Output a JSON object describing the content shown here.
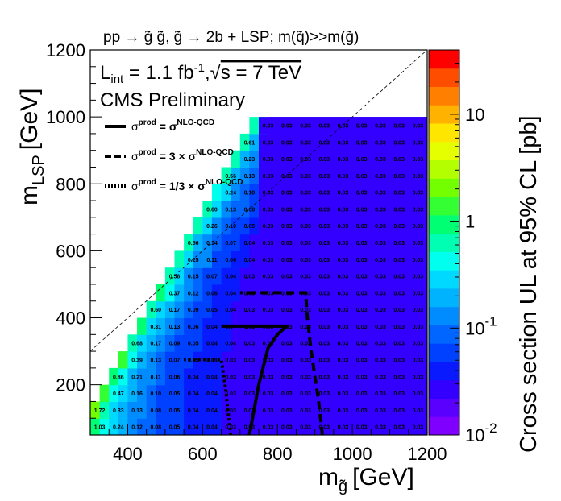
{
  "chart_data": {
    "type": "heatmap",
    "title": "pp → g̃ g̃, g̃ → 2b + LSP; m(q̃)>>m(g̃)",
    "xlabel": "m",
    "xlabel_sub": "g̃",
    "xlabel_unit": "[GeV]",
    "ylabel": "m",
    "ylabel_sub": "LSP",
    "ylabel_unit": "[GeV]",
    "zlabel": "Cross section UL at 95% CL [pb]",
    "xlim": [
      300,
      1200
    ],
    "ylim": [
      50,
      1200
    ],
    "zlim": [
      0.01,
      40
    ],
    "zscale": "log",
    "x_ticks": [
      "400",
      "600",
      "800",
      "1000",
      "1200"
    ],
    "y_ticks": [
      "200",
      "400",
      "600",
      "800",
      "1000",
      "1200"
    ],
    "z_ticks": [
      {
        "label": "10",
        "sup": "-2",
        "value": 0.01
      },
      {
        "label": "10",
        "sup": "-1",
        "value": 0.1
      },
      {
        "label": "1",
        "sup": "",
        "value": 1
      },
      {
        "label": "10",
        "sup": "",
        "value": 10
      }
    ],
    "lumi_text": {
      "L": "L",
      "sub": "int",
      "eq": " = 1.1 fb",
      "sup": "-1",
      "comma": ",",
      "sqrt": "√",
      "s": "s = 7 TeV"
    },
    "prelim": "CMS Preliminary",
    "legend": [
      {
        "style": "solid",
        "prefix": "σ",
        "psup": "prod",
        "mid": " = σ",
        "sup": "NLO-QCD"
      },
      {
        "style": "dashed",
        "prefix": "σ",
        "psup": "prod",
        "mid": " = 3 × σ",
        "sup": "NLO-QCD"
      },
      {
        "style": "dotted",
        "prefix": "σ",
        "psup": "prod",
        "mid": " = 1/3 × σ",
        "sup": "NLO-QCD"
      }
    ],
    "grid": false,
    "x_bins_start": 300,
    "x_bin_width": 25,
    "y_bins_start": 50,
    "y_bin_width": 25,
    "rows": [
      {
        "y": 50,
        "values": [
          "1.03",
          "0.48",
          "0.24",
          "0.16",
          "0.12",
          "0.10",
          "0.08",
          "0.06",
          "0.05",
          "0.05",
          "0.04",
          "0.04",
          "0.04",
          "0.04",
          "0.03",
          "0.03",
          "0.03",
          "0.03",
          "0.03",
          "0.03",
          "0.03",
          "0.03",
          "0.03",
          "0.03",
          "0.03",
          "0.03",
          "0.03",
          "0.03",
          "0.03",
          "0.03",
          "0.03",
          "0.03",
          "0.03",
          "0.03",
          "0.03",
          "0.03"
        ]
      },
      {
        "y": 100,
        "values": [
          "1.72",
          "0.72",
          "0.33",
          "0.20",
          "0.13",
          "0.11",
          "0.08",
          "0.06",
          "0.05",
          "0.05",
          "0.04",
          "0.04",
          "0.04",
          "0.04",
          "0.03",
          "0.03",
          "0.03",
          "0.03",
          "0.03",
          "0.03",
          "0.03",
          "0.03",
          "0.03",
          "0.03",
          "0.03",
          "0.03",
          "0.03",
          "0.03",
          "0.03",
          "0.03",
          "0.03",
          "0.03",
          "0.03",
          "0.03",
          "0.03",
          "0.03"
        ]
      },
      {
        "y": 150,
        "values": [
          "",
          "1.33",
          "0.47",
          "0.26",
          "0.16",
          "0.12",
          "0.10",
          "0.07",
          "0.05",
          "0.05",
          "0.04",
          "0.04",
          "0.04",
          "0.04",
          "0.03",
          "0.03",
          "0.03",
          "0.03",
          "0.03",
          "0.03",
          "0.03",
          "0.03",
          "0.03",
          "0.03",
          "0.03",
          "0.03",
          "0.03",
          "0.03",
          "0.03",
          "0.03",
          "0.03",
          "0.03",
          "0.03",
          "0.03",
          "0.03",
          "0.03"
        ]
      },
      {
        "y": 200,
        "values": [
          "",
          "",
          "0.86",
          "0.41",
          "0.21",
          "0.14",
          "0.11",
          "0.09",
          "0.06",
          "0.05",
          "0.04",
          "0.04",
          "0.04",
          "0.04",
          "0.03",
          "0.03",
          "0.03",
          "0.03",
          "0.03",
          "0.03",
          "0.03",
          "0.03",
          "0.03",
          "0.03",
          "0.03",
          "0.03",
          "0.03",
          "0.03",
          "0.03",
          "0.03",
          "0.03",
          "0.03",
          "0.03",
          "0.03",
          "0.03",
          "0.03"
        ]
      },
      {
        "y": 250,
        "values": [
          "",
          "",
          "",
          "1.17",
          "0.39",
          "0.20",
          "0.13",
          "0.10",
          "0.07",
          "0.06",
          "0.05",
          "0.04",
          "0.04",
          "0.04",
          "0.03",
          "0.03",
          "0.03",
          "0.03",
          "0.03",
          "0.03",
          "0.03",
          "0.03",
          "0.03",
          "0.03",
          "0.03",
          "0.03",
          "0.03",
          "0.03",
          "0.03",
          "0.03",
          "0.03",
          "0.03",
          "0.03",
          "0.03",
          "0.03",
          "0.03"
        ]
      },
      {
        "y": 300,
        "values": [
          "",
          "",
          "",
          "",
          "0.68",
          "0.31",
          "0.17",
          "0.12",
          "0.09",
          "0.07",
          "0.05",
          "0.05",
          "0.04",
          "0.04",
          "0.04",
          "0.03",
          "0.03",
          "0.03",
          "0.03",
          "0.03",
          "0.03",
          "0.03",
          "0.03",
          "0.03",
          "0.03",
          "0.03",
          "0.03",
          "0.03",
          "0.03",
          "0.03",
          "0.03",
          "0.03",
          "0.03",
          "0.03",
          "0.03",
          "0.03"
        ]
      },
      {
        "y": 350,
        "values": [
          "",
          "",
          "",
          "",
          "",
          "0.84",
          "0.31",
          "0.18",
          "0.13",
          "0.09",
          "0.06",
          "0.05",
          "0.04",
          "0.04",
          "0.04",
          "0.03",
          "0.03",
          "0.03",
          "0.03",
          "0.03",
          "0.03",
          "0.03",
          "0.03",
          "0.03",
          "0.03",
          "0.03",
          "0.03",
          "0.03",
          "0.03",
          "0.03",
          "0.03",
          "0.03",
          "0.03",
          "0.03",
          "0.03",
          "0.03"
        ]
      },
      {
        "y": 400,
        "values": [
          "",
          "",
          "",
          "",
          "",
          "",
          "0.60",
          "0.28",
          "0.17",
          "0.11",
          "0.09",
          "0.06",
          "0.05",
          "0.04",
          "0.04",
          "0.03",
          "0.03",
          "0.03",
          "0.03",
          "0.03",
          "0.03",
          "0.03",
          "0.03",
          "0.03",
          "0.03",
          "0.03",
          "0.03",
          "0.03",
          "0.03",
          "0.03",
          "0.03",
          "0.03",
          "0.03",
          "0.03",
          "0.03",
          "0.03"
        ]
      },
      {
        "y": 450,
        "values": [
          "",
          "",
          "",
          "",
          "",
          "",
          "",
          "0.82",
          "0.37",
          "0.19",
          "0.12",
          "0.08",
          "0.06",
          "0.04",
          "0.04",
          "0.04",
          "0.03",
          "0.03",
          "0.03",
          "0.03",
          "0.03",
          "0.03",
          "0.03",
          "0.03",
          "0.03",
          "0.03",
          "0.03",
          "0.03",
          "0.03",
          "0.03",
          "0.03",
          "0.03",
          "0.03",
          "0.03",
          "0.03",
          "0.03"
        ]
      },
      {
        "y": 500,
        "values": [
          "",
          "",
          "",
          "",
          "",
          "",
          "",
          "",
          "0.58",
          "0.28",
          "0.15",
          "0.10",
          "0.07",
          "0.05",
          "0.04",
          "0.04",
          "0.03",
          "0.03",
          "0.03",
          "0.03",
          "0.03",
          "0.03",
          "0.03",
          "0.03",
          "0.03",
          "0.03",
          "0.03",
          "0.03",
          "0.03",
          "0.03",
          "0.03",
          "0.03",
          "0.03",
          "0.03",
          "0.03",
          "0.03"
        ]
      },
      {
        "y": 550,
        "values": [
          "",
          "",
          "",
          "",
          "",
          "",
          "",
          "",
          "",
          "0.55",
          "0.25",
          "0.14",
          "0.11",
          "0.07",
          "0.06",
          "0.04",
          "0.04",
          "0.03",
          "0.03",
          "0.03",
          "0.03",
          "0.03",
          "0.03",
          "0.03",
          "0.03",
          "0.03",
          "0.03",
          "0.03",
          "0.03",
          "0.03",
          "0.03",
          "0.03",
          "0.03",
          "0.03",
          "0.03",
          "0.03"
        ]
      },
      {
        "y": 600,
        "values": [
          "",
          "",
          "",
          "",
          "",
          "",
          "",
          "",
          "",
          "",
          "0.56",
          "0.23",
          "0.14",
          "0.10",
          "0.07",
          "0.05",
          "0.04",
          "0.03",
          "0.03",
          "0.03",
          "0.03",
          "0.03",
          "0.03",
          "0.03",
          "0.03",
          "0.03",
          "0.03",
          "0.03",
          "0.03",
          "0.03",
          "0.03",
          "0.03",
          "0.03",
          "0.03",
          "0.03",
          "0.03"
        ]
      },
      {
        "y": 650,
        "values": [
          "",
          "",
          "",
          "",
          "",
          "",
          "",
          "",
          "",
          "",
          "",
          "0.58",
          "0.26",
          "0.15",
          "0.10",
          "0.07",
          "0.05",
          "0.04",
          "0.03",
          "0.03",
          "0.03",
          "0.03",
          "0.03",
          "0.03",
          "0.03",
          "0.03",
          "0.03",
          "0.03",
          "0.03",
          "0.03",
          "0.03",
          "0.03",
          "0.03",
          "0.03",
          "0.03",
          "0.03"
        ]
      },
      {
        "y": 700,
        "values": [
          "",
          "",
          "",
          "",
          "",
          "",
          "",
          "",
          "",
          "",
          "",
          "",
          "0.60",
          "0.26",
          "0.13",
          "0.10",
          "0.08",
          "0.05",
          "0.03",
          "0.03",
          "0.03",
          "0.03",
          "0.03",
          "0.03",
          "0.03",
          "0.03",
          "0.03",
          "0.03",
          "0.03",
          "0.03",
          "0.03",
          "0.03",
          "0.03",
          "0.03",
          "0.03",
          "0.03"
        ]
      },
      {
        "y": 750,
        "values": [
          "",
          "",
          "",
          "",
          "",
          "",
          "",
          "",
          "",
          "",
          "",
          "",
          "",
          "0.51",
          "0.24",
          "0.13",
          "0.10",
          "0.06",
          "0.03",
          "0.03",
          "0.03",
          "0.03",
          "0.03",
          "0.03",
          "0.03",
          "0.03",
          "0.03",
          "0.03",
          "0.03",
          "0.03",
          "0.03",
          "0.03",
          "0.03",
          "0.03",
          "0.03",
          "0.03"
        ]
      },
      {
        "y": 800,
        "values": [
          "",
          "",
          "",
          "",
          "",
          "",
          "",
          "",
          "",
          "",
          "",
          "",
          "",
          "",
          "0.56",
          "0.23",
          "0.13",
          "0.10",
          "0.03",
          "0.03",
          "0.03",
          "0.03",
          "0.03",
          "0.03",
          "0.03",
          "0.03",
          "0.03",
          "0.03",
          "0.03",
          "0.03",
          "0.03",
          "0.03",
          "0.03",
          "0.03",
          "0.03",
          "0.03"
        ]
      },
      {
        "y": 850,
        "values": [
          "",
          "",
          "",
          "",
          "",
          "",
          "",
          "",
          "",
          "",
          "",
          "",
          "",
          "",
          "",
          "0.56",
          "0.23",
          "0.13",
          "0.03",
          "0.03",
          "0.03",
          "0.03",
          "0.03",
          "0.03",
          "0.03",
          "0.03",
          "0.03",
          "0.03",
          "0.03",
          "0.03",
          "0.03",
          "0.03",
          "0.03",
          "0.03",
          "0.03",
          "0.03"
        ]
      },
      {
        "y": 900,
        "values": [
          "",
          "",
          "",
          "",
          "",
          "",
          "",
          "",
          "",
          "",
          "",
          "",
          "",
          "",
          "",
          "",
          "0.61",
          "0.23",
          "0.03",
          "0.03",
          "0.03",
          "0.03",
          "0.03",
          "0.03",
          "0.03",
          "0.03",
          "0.03",
          "0.03",
          "0.03",
          "0.03",
          "0.03",
          "0.03",
          "0.03",
          "0.03",
          "0.03",
          "0.03"
        ]
      },
      {
        "y": 950,
        "values": [
          "",
          "",
          "",
          "",
          "",
          "",
          "",
          "",
          "",
          "",
          "",
          "",
          "",
          "",
          "",
          "",
          "",
          "0.57",
          "0.03",
          "0.03",
          "0.03",
          "0.03",
          "0.03",
          "0.03",
          "0.03",
          "0.03",
          "0.03",
          "0.03",
          "0.03",
          "0.03",
          "0.03",
          "0.03",
          "0.03",
          "0.03",
          "0.03",
          "0.03"
        ]
      }
    ],
    "contours": {
      "solid": [
        [
          725,
          50
        ],
        [
          750,
          200
        ],
        [
          775,
          310
        ],
        [
          800,
          350
        ],
        [
          825,
          375
        ],
        [
          775,
          375
        ],
        [
          725,
          375
        ],
        [
          650,
          375
        ]
      ],
      "dashed": [
        [
          920,
          50
        ],
        [
          910,
          150
        ],
        [
          890,
          300
        ],
        [
          880,
          400
        ],
        [
          875,
          475
        ],
        [
          700,
          475
        ]
      ],
      "dotted": [
        [
          675,
          50
        ],
        [
          660,
          200
        ],
        [
          650,
          275
        ],
        [
          550,
          275
        ]
      ]
    }
  }
}
